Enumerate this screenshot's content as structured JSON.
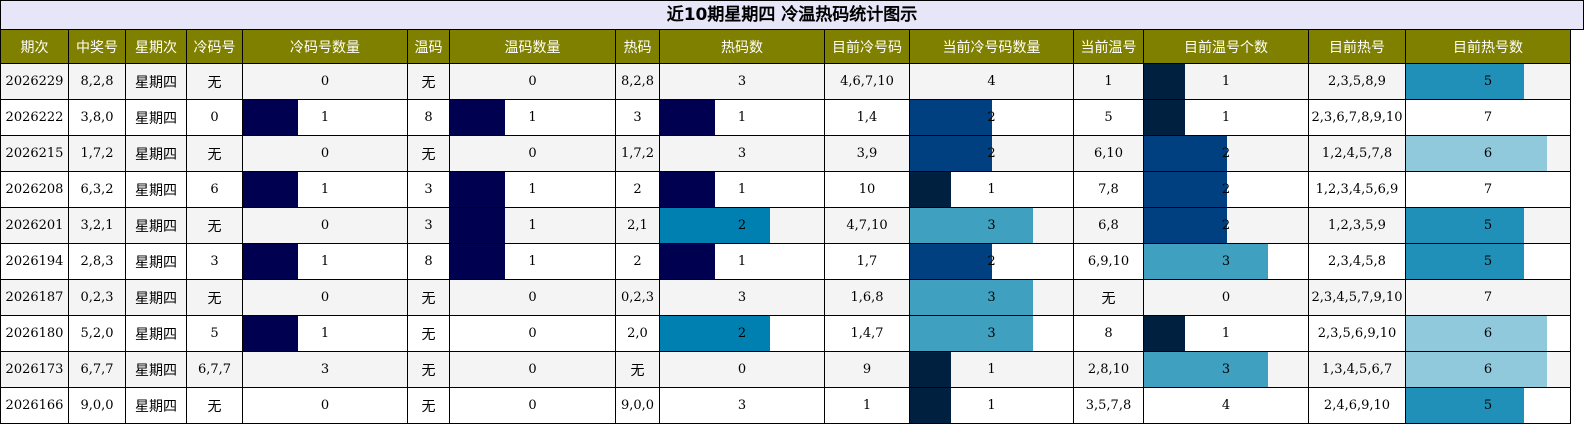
{
  "title": "近10期星期四 冷温热码统计图示",
  "headers": [
    "期次",
    "中奖号",
    "星期次",
    "冷码号",
    "冷码号数量",
    "温码",
    "温码数量",
    "热码",
    "热码数",
    "目前冷号码",
    "当前冷号码数量",
    "当前温号",
    "目前温号个数",
    "目前热号",
    "目前热号数"
  ],
  "bar_max": {
    "cold_count": 3,
    "warm_count": 1,
    "hot_count": 3,
    "cur_cold_count": 4,
    "cur_warm_count": 4,
    "cur_hot_count": 7
  },
  "colors": {
    "header_bg": "#808000",
    "title_bg": "#e6e6f8",
    "bar_1_dark": "#000050",
    "bar_2_teal": "#0080b0",
    "bar_cold_1": "#00203f",
    "bar_cold_2": "#004080",
    "bar_cold_3": "#40a0c0",
    "bar_hot_5": "#2090b8",
    "bar_hot_6": "#90c8dc"
  },
  "chart_data": {
    "type": "table",
    "title": "近10期星期四 冷温热码统计图示",
    "rows": [
      {
        "issue": "2026229",
        "number": "8,2,8",
        "weekday": "星期四",
        "cold": "无",
        "cold_count": 0,
        "warm": "无",
        "warm_count": 0,
        "hot": "8,2,8",
        "hot_count": 3,
        "cur_cold": "4,6,7,10",
        "cur_cold_count": 4,
        "cur_warm": "1",
        "cur_warm_count": 1,
        "cur_hot": "2,3,5,8,9",
        "cur_hot_count": 5
      },
      {
        "issue": "2026222",
        "number": "3,8,0",
        "weekday": "星期四",
        "cold": "0",
        "cold_count": 1,
        "warm": "8",
        "warm_count": 1,
        "hot": "3",
        "hot_count": 1,
        "cur_cold": "1,4",
        "cur_cold_count": 2,
        "cur_warm": "5",
        "cur_warm_count": 1,
        "cur_hot": "2,3,6,7,8,9,10",
        "cur_hot_count": 7
      },
      {
        "issue": "2026215",
        "number": "1,7,2",
        "weekday": "星期四",
        "cold": "无",
        "cold_count": 0,
        "warm": "无",
        "warm_count": 0,
        "hot": "1,7,2",
        "hot_count": 3,
        "cur_cold": "3,9",
        "cur_cold_count": 2,
        "cur_warm": "6,10",
        "cur_warm_count": 2,
        "cur_hot": "1,2,4,5,7,8",
        "cur_hot_count": 6
      },
      {
        "issue": "2026208",
        "number": "6,3,2",
        "weekday": "星期四",
        "cold": "6",
        "cold_count": 1,
        "warm": "3",
        "warm_count": 1,
        "hot": "2",
        "hot_count": 1,
        "cur_cold": "10",
        "cur_cold_count": 1,
        "cur_warm": "7,8",
        "cur_warm_count": 2,
        "cur_hot": "1,2,3,4,5,6,9",
        "cur_hot_count": 7
      },
      {
        "issue": "2026201",
        "number": "3,2,1",
        "weekday": "星期四",
        "cold": "无",
        "cold_count": 0,
        "warm": "3",
        "warm_count": 1,
        "hot": "2,1",
        "hot_count": 2,
        "cur_cold": "4,7,10",
        "cur_cold_count": 3,
        "cur_warm": "6,8",
        "cur_warm_count": 2,
        "cur_hot": "1,2,3,5,9",
        "cur_hot_count": 5
      },
      {
        "issue": "2026194",
        "number": "2,8,3",
        "weekday": "星期四",
        "cold": "3",
        "cold_count": 1,
        "warm": "8",
        "warm_count": 1,
        "hot": "2",
        "hot_count": 1,
        "cur_cold": "1,7",
        "cur_cold_count": 2,
        "cur_warm": "6,9,10",
        "cur_warm_count": 3,
        "cur_hot": "2,3,4,5,8",
        "cur_hot_count": 5
      },
      {
        "issue": "2026187",
        "number": "0,2,3",
        "weekday": "星期四",
        "cold": "无",
        "cold_count": 0,
        "warm": "无",
        "warm_count": 0,
        "hot": "0,2,3",
        "hot_count": 3,
        "cur_cold": "1,6,8",
        "cur_cold_count": 3,
        "cur_warm": "无",
        "cur_warm_count": 0,
        "cur_hot": "2,3,4,5,7,9,10",
        "cur_hot_count": 7
      },
      {
        "issue": "2026180",
        "number": "5,2,0",
        "weekday": "星期四",
        "cold": "5",
        "cold_count": 1,
        "warm": "无",
        "warm_count": 0,
        "hot": "2,0",
        "hot_count": 2,
        "cur_cold": "1,4,7",
        "cur_cold_count": 3,
        "cur_warm": "8",
        "cur_warm_count": 1,
        "cur_hot": "2,3,5,6,9,10",
        "cur_hot_count": 6
      },
      {
        "issue": "2026173",
        "number": "6,7,7",
        "weekday": "星期四",
        "cold": "6,7,7",
        "cold_count": 3,
        "warm": "无",
        "warm_count": 0,
        "hot": "无",
        "hot_count": 0,
        "cur_cold": "9",
        "cur_cold_count": 1,
        "cur_warm": "2,8,10",
        "cur_warm_count": 3,
        "cur_hot": "1,3,4,5,6,7",
        "cur_hot_count": 6
      },
      {
        "issue": "2026166",
        "number": "9,0,0",
        "weekday": "星期四",
        "cold": "无",
        "cold_count": 0,
        "warm": "无",
        "warm_count": 0,
        "hot": "9,0,0",
        "hot_count": 3,
        "cur_cold": "1",
        "cur_cold_count": 1,
        "cur_warm": "3,5,7,8",
        "cur_warm_count": 4,
        "cur_hot": "2,4,6,9,10",
        "cur_hot_count": 5
      }
    ]
  }
}
